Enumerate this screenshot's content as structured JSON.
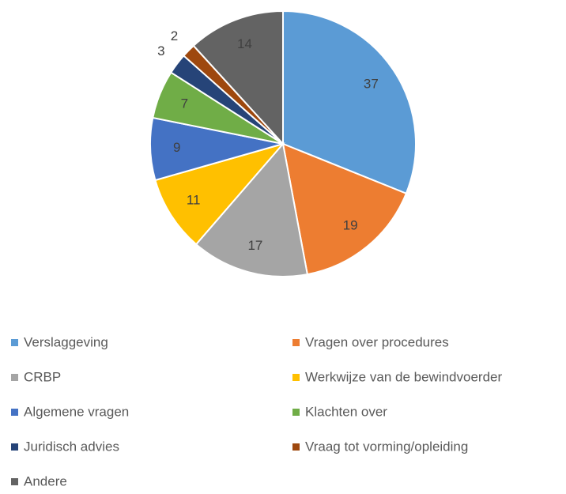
{
  "chart_data": {
    "type": "pie",
    "categories": [
      "Verslaggeving",
      "Vragen over procedures",
      "CRBP",
      "Werkwijze van de bewindvoerder",
      "Algemene vragen",
      "Klachten over",
      "Juridisch advies",
      "Vraag tot vorming/opleiding",
      "Andere"
    ],
    "values": [
      37,
      19,
      17,
      11,
      9,
      7,
      3,
      2,
      14
    ],
    "colors": [
      "#5b9bd5",
      "#ed7d31",
      "#a5a5a5",
      "#ffc000",
      "#4472c4",
      "#70ad47",
      "#264478",
      "#9e480e",
      "#636363"
    ],
    "legend": "bottom"
  }
}
